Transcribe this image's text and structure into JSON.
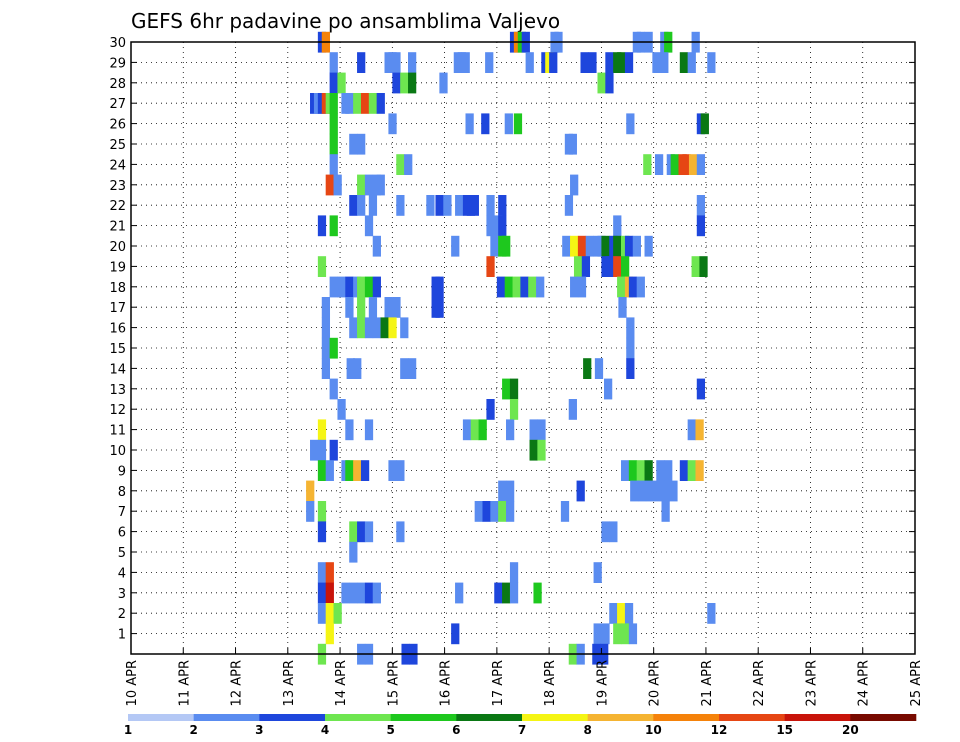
{
  "chart_data": {
    "type": "heatmap",
    "title": "GEFS 6hr padavine po ansamblima Valjevo",
    "xlabel": "",
    "ylabel": "",
    "x_tick_labels": [
      "10 APR",
      "11 APR",
      "12 APR",
      "13 APR",
      "14 APR",
      "15 APR",
      "16 APR",
      "17 APR",
      "18 APR",
      "19 APR",
      "20 APR",
      "21 APR",
      "22 APR",
      "23 APR",
      "24 APR",
      "25 APR"
    ],
    "y_tick_labels": [
      "1",
      "2",
      "3",
      "4",
      "5",
      "6",
      "7",
      "8",
      "9",
      "10",
      "11",
      "12",
      "13",
      "14",
      "15",
      "16",
      "17",
      "18",
      "19",
      "20",
      "21",
      "22",
      "23",
      "24",
      "25",
      "26",
      "27",
      "28",
      "29",
      "30"
    ],
    "xlim": [
      0,
      60
    ],
    "ylim": [
      0,
      30
    ],
    "grid": true,
    "colorbar": {
      "thresholds": [
        1,
        2,
        3,
        4,
        5,
        6,
        7,
        8,
        10,
        12,
        15,
        20
      ],
      "labels": [
        "1",
        "2",
        "3",
        "4",
        "5",
        "6",
        "7",
        "8",
        "10",
        "12",
        "15",
        "20"
      ],
      "colors": [
        "#b4c8f5",
        "#5a8cf0",
        "#1e46dc",
        "#6ee650",
        "#1ec81e",
        "#0a7814",
        "#f5f514",
        "#f5b432",
        "#f5820a",
        "#e64614",
        "#c8140a",
        "#780a00"
      ]
    },
    "cells": [
      [
        14.6,
        30,
        2
      ],
      [
        14.9,
        30,
        8
      ],
      [
        29.3,
        30,
        2
      ],
      [
        29.6,
        30,
        8
      ],
      [
        29.9,
        30,
        4
      ],
      [
        30.2,
        30,
        2
      ],
      [
        32.4,
        30,
        1
      ],
      [
        32.7,
        30,
        1
      ],
      [
        38.7,
        30,
        1
      ],
      [
        39.0,
        30,
        1
      ],
      [
        39.6,
        30,
        1
      ],
      [
        40.8,
        30,
        1
      ],
      [
        41.1,
        30,
        4
      ],
      [
        43.2,
        30,
        1
      ],
      [
        15.5,
        29,
        1
      ],
      [
        17.6,
        29,
        2
      ],
      [
        19.7,
        29,
        1
      ],
      [
        20.0,
        29,
        1
      ],
      [
        20.3,
        29,
        1
      ],
      [
        21.5,
        29,
        1
      ],
      [
        25.0,
        29,
        1
      ],
      [
        25.3,
        29,
        1
      ],
      [
        25.6,
        29,
        1
      ],
      [
        27.4,
        29,
        1
      ],
      [
        30.5,
        29,
        1
      ],
      [
        31.7,
        29,
        2
      ],
      [
        32.0,
        29,
        6
      ],
      [
        32.3,
        29,
        2
      ],
      [
        34.7,
        29,
        2
      ],
      [
        35.3,
        29,
        2
      ],
      [
        36.6,
        29,
        2
      ],
      [
        37.2,
        29,
        5
      ],
      [
        37.5,
        29,
        5
      ],
      [
        38.1,
        29,
        2
      ],
      [
        40.2,
        29,
        1
      ],
      [
        40.8,
        29,
        1
      ],
      [
        42.3,
        29,
        5
      ],
      [
        42.9,
        29,
        1
      ],
      [
        44.4,
        29,
        1
      ],
      [
        15.5,
        28,
        2
      ],
      [
        16.1,
        28,
        3
      ],
      [
        20.3,
        28,
        2
      ],
      [
        20.9,
        28,
        3
      ],
      [
        21.5,
        28,
        5
      ],
      [
        23.9,
        28,
        1
      ],
      [
        36.0,
        28,
        3
      ],
      [
        36.6,
        28,
        2
      ],
      [
        14.0,
        27,
        2
      ],
      [
        14.3,
        27,
        1
      ],
      [
        14.6,
        27,
        2
      ],
      [
        14.9,
        27,
        9
      ],
      [
        15.2,
        27,
        3
      ],
      [
        15.5,
        27,
        4
      ],
      [
        16.4,
        27,
        1
      ],
      [
        16.7,
        27,
        1
      ],
      [
        17.3,
        27,
        3
      ],
      [
        17.9,
        27,
        9
      ],
      [
        18.5,
        27,
        3
      ],
      [
        19.1,
        27,
        2
      ],
      [
        15.5,
        26,
        4
      ],
      [
        20.0,
        26,
        1
      ],
      [
        25.9,
        26,
        1
      ],
      [
        27.1,
        26,
        2
      ],
      [
        28.9,
        26,
        1
      ],
      [
        29.6,
        26,
        4
      ],
      [
        38.2,
        26,
        1
      ],
      [
        43.6,
        26,
        2
      ],
      [
        43.9,
        26,
        5
      ],
      [
        15.5,
        25,
        4
      ],
      [
        17.0,
        25,
        1
      ],
      [
        17.6,
        25,
        1
      ],
      [
        33.5,
        25,
        1
      ],
      [
        33.8,
        25,
        1
      ],
      [
        15.5,
        24,
        1
      ],
      [
        20.6,
        24,
        3
      ],
      [
        21.2,
        24,
        1
      ],
      [
        39.5,
        24,
        3
      ],
      [
        40.4,
        24,
        1
      ],
      [
        41.3,
        24,
        1
      ],
      [
        41.6,
        24,
        4
      ],
      [
        42.2,
        24,
        9
      ],
      [
        42.5,
        24,
        9
      ],
      [
        43.0,
        24,
        7
      ],
      [
        43.6,
        24,
        1
      ],
      [
        15.2,
        23,
        9
      ],
      [
        15.8,
        23,
        1
      ],
      [
        17.6,
        23,
        3
      ],
      [
        18.2,
        23,
        1
      ],
      [
        18.8,
        23,
        1
      ],
      [
        19.1,
        23,
        1
      ],
      [
        33.9,
        23,
        1
      ],
      [
        17.0,
        22,
        2
      ],
      [
        17.6,
        22,
        1
      ],
      [
        18.5,
        22,
        1
      ],
      [
        20.6,
        22,
        1
      ],
      [
        22.9,
        22,
        1
      ],
      [
        23.6,
        22,
        2
      ],
      [
        24.2,
        22,
        1
      ],
      [
        25.1,
        22,
        1
      ],
      [
        25.7,
        22,
        2
      ],
      [
        26.0,
        22,
        2
      ],
      [
        26.3,
        22,
        2
      ],
      [
        27.5,
        22,
        1
      ],
      [
        28.4,
        22,
        2
      ],
      [
        33.5,
        22,
        1
      ],
      [
        43.6,
        22,
        1
      ],
      [
        14.6,
        21,
        2
      ],
      [
        15.5,
        21,
        4
      ],
      [
        18.2,
        21,
        1
      ],
      [
        27.5,
        21,
        1
      ],
      [
        28.1,
        21,
        1
      ],
      [
        28.4,
        21,
        2
      ],
      [
        37.2,
        21,
        1
      ],
      [
        43.6,
        21,
        2
      ],
      [
        18.8,
        20,
        1
      ],
      [
        24.8,
        20,
        1
      ],
      [
        27.8,
        20,
        1
      ],
      [
        28.4,
        20,
        4
      ],
      [
        28.7,
        20,
        4
      ],
      [
        33.3,
        20,
        1
      ],
      [
        33.9,
        20,
        6
      ],
      [
        34.5,
        20,
        9
      ],
      [
        35.1,
        20,
        1
      ],
      [
        35.7,
        20,
        1
      ],
      [
        36.0,
        20,
        1
      ],
      [
        36.3,
        20,
        5
      ],
      [
        36.9,
        20,
        2
      ],
      [
        37.2,
        20,
        5
      ],
      [
        37.8,
        20,
        3
      ],
      [
        38.1,
        20,
        2
      ],
      [
        38.7,
        20,
        1
      ],
      [
        39.6,
        20,
        1
      ],
      [
        14.6,
        19,
        3
      ],
      [
        27.5,
        19,
        9
      ],
      [
        34.2,
        19,
        3
      ],
      [
        34.8,
        19,
        2
      ],
      [
        36.3,
        19,
        2
      ],
      [
        36.6,
        19,
        2
      ],
      [
        36.9,
        19,
        2
      ],
      [
        37.2,
        19,
        9
      ],
      [
        37.8,
        19,
        4
      ],
      [
        43.2,
        19,
        3
      ],
      [
        43.8,
        19,
        5
      ],
      [
        15.5,
        18,
        1
      ],
      [
        16.1,
        18,
        1
      ],
      [
        16.7,
        18,
        2
      ],
      [
        17.3,
        18,
        1
      ],
      [
        17.6,
        18,
        3
      ],
      [
        18.2,
        18,
        4
      ],
      [
        18.8,
        18,
        2
      ],
      [
        23.3,
        18,
        2
      ],
      [
        23.6,
        18,
        2
      ],
      [
        28.3,
        18,
        2
      ],
      [
        28.9,
        18,
        4
      ],
      [
        29.5,
        18,
        3
      ],
      [
        30.1,
        18,
        2
      ],
      [
        30.7,
        18,
        3
      ],
      [
        31.3,
        18,
        1
      ],
      [
        33.9,
        18,
        1
      ],
      [
        34.5,
        18,
        1
      ],
      [
        37.5,
        18,
        3
      ],
      [
        38.1,
        18,
        7
      ],
      [
        38.4,
        18,
        2
      ],
      [
        39.0,
        18,
        1
      ],
      [
        14.9,
        17,
        1
      ],
      [
        16.7,
        17,
        1
      ],
      [
        17.6,
        17,
        3
      ],
      [
        18.5,
        17,
        1
      ],
      [
        19.7,
        17,
        1
      ],
      [
        20.3,
        17,
        1
      ],
      [
        23.3,
        17,
        2
      ],
      [
        23.6,
        17,
        2
      ],
      [
        37.6,
        17,
        1
      ],
      [
        14.9,
        16,
        1
      ],
      [
        17.0,
        16,
        1
      ],
      [
        17.6,
        16,
        3
      ],
      [
        18.2,
        16,
        1
      ],
      [
        18.8,
        16,
        1
      ],
      [
        19.4,
        16,
        5
      ],
      [
        20.0,
        16,
        6
      ],
      [
        20.9,
        16,
        1
      ],
      [
        38.2,
        16,
        1
      ],
      [
        14.9,
        15,
        1
      ],
      [
        15.5,
        15,
        4
      ],
      [
        38.2,
        15,
        1
      ],
      [
        14.9,
        14,
        1
      ],
      [
        16.8,
        14,
        1
      ],
      [
        17.3,
        14,
        1
      ],
      [
        20.9,
        14,
        1
      ],
      [
        21.5,
        14,
        1
      ],
      [
        34.9,
        14,
        5
      ],
      [
        35.8,
        14,
        1
      ],
      [
        38.2,
        14,
        2
      ],
      [
        15.5,
        13,
        1
      ],
      [
        28.7,
        13,
        4
      ],
      [
        29.3,
        13,
        5
      ],
      [
        36.5,
        13,
        1
      ],
      [
        43.6,
        13,
        2
      ],
      [
        16.1,
        12,
        1
      ],
      [
        27.5,
        12,
        2
      ],
      [
        29.3,
        12,
        3
      ],
      [
        33.8,
        12,
        1
      ],
      [
        14.6,
        11,
        6
      ],
      [
        16.7,
        11,
        1
      ],
      [
        18.2,
        11,
        1
      ],
      [
        25.7,
        11,
        1
      ],
      [
        26.3,
        11,
        3
      ],
      [
        26.9,
        11,
        4
      ],
      [
        29.0,
        11,
        1
      ],
      [
        30.8,
        11,
        1
      ],
      [
        31.4,
        11,
        1
      ],
      [
        42.9,
        11,
        1
      ],
      [
        43.5,
        11,
        7
      ],
      [
        14.0,
        10,
        1
      ],
      [
        14.6,
        10,
        1
      ],
      [
        15.5,
        10,
        2
      ],
      [
        30.8,
        10,
        5
      ],
      [
        31.4,
        10,
        3
      ],
      [
        14.6,
        9,
        4
      ],
      [
        15.2,
        9,
        1
      ],
      [
        16.4,
        9,
        1
      ],
      [
        16.7,
        9,
        4
      ],
      [
        17.3,
        9,
        7
      ],
      [
        17.9,
        9,
        2
      ],
      [
        20.0,
        9,
        1
      ],
      [
        20.6,
        9,
        1
      ],
      [
        37.8,
        9,
        1
      ],
      [
        38.4,
        9,
        4
      ],
      [
        39.0,
        9,
        3
      ],
      [
        39.6,
        9,
        5
      ],
      [
        40.5,
        9,
        1
      ],
      [
        41.1,
        9,
        1
      ],
      [
        42.3,
        9,
        2
      ],
      [
        42.9,
        9,
        3
      ],
      [
        43.5,
        9,
        7
      ],
      [
        13.7,
        8,
        7
      ],
      [
        28.4,
        8,
        1
      ],
      [
        29.0,
        8,
        1
      ],
      [
        34.4,
        8,
        2
      ],
      [
        38.5,
        8,
        1
      ],
      [
        39.1,
        8,
        1
      ],
      [
        39.7,
        8,
        1
      ],
      [
        40.3,
        8,
        1
      ],
      [
        40.9,
        8,
        1
      ],
      [
        41.5,
        8,
        1
      ],
      [
        13.7,
        7,
        1
      ],
      [
        14.6,
        7,
        3
      ],
      [
        26.6,
        7,
        1
      ],
      [
        27.2,
        7,
        2
      ],
      [
        27.8,
        7,
        1
      ],
      [
        28.4,
        7,
        3
      ],
      [
        29.0,
        7,
        1
      ],
      [
        33.2,
        7,
        1
      ],
      [
        40.9,
        7,
        1
      ],
      [
        14.6,
        6,
        2
      ],
      [
        17.0,
        6,
        3
      ],
      [
        17.6,
        6,
        2
      ],
      [
        18.2,
        6,
        1
      ],
      [
        20.6,
        6,
        1
      ],
      [
        36.3,
        6,
        1
      ],
      [
        36.9,
        6,
        1
      ],
      [
        17.0,
        5,
        1
      ],
      [
        14.6,
        4,
        1
      ],
      [
        15.2,
        4,
        9
      ],
      [
        29.3,
        4,
        1
      ],
      [
        35.7,
        4,
        1
      ],
      [
        14.6,
        3,
        2
      ],
      [
        15.2,
        3,
        10
      ],
      [
        16.4,
        3,
        1
      ],
      [
        17.0,
        3,
        1
      ],
      [
        17.6,
        3,
        1
      ],
      [
        18.2,
        3,
        2
      ],
      [
        18.8,
        3,
        1
      ],
      [
        25.1,
        3,
        1
      ],
      [
        28.1,
        3,
        2
      ],
      [
        28.7,
        3,
        5
      ],
      [
        29.3,
        3,
        1
      ],
      [
        31.1,
        3,
        4
      ],
      [
        14.6,
        2,
        1
      ],
      [
        15.2,
        2,
        6
      ],
      [
        15.8,
        2,
        3
      ],
      [
        36.9,
        2,
        1
      ],
      [
        37.5,
        2,
        6
      ],
      [
        38.1,
        2,
        1
      ],
      [
        44.4,
        2,
        1
      ],
      [
        15.2,
        1,
        6
      ],
      [
        24.8,
        1,
        2
      ],
      [
        35.7,
        1,
        1
      ],
      [
        36.3,
        1,
        1
      ],
      [
        37.2,
        1,
        3
      ],
      [
        37.8,
        1,
        3
      ],
      [
        38.4,
        1,
        1
      ],
      [
        14.6,
        0,
        3
      ],
      [
        21.0,
        0,
        2
      ],
      [
        21.6,
        0,
        2
      ],
      [
        33.8,
        0,
        3
      ],
      [
        34.4,
        0,
        1
      ],
      [
        35.6,
        0,
        2
      ],
      [
        36.2,
        0,
        2
      ],
      [
        17.6,
        0,
        1
      ],
      [
        18.2,
        0,
        1
      ]
    ]
  }
}
